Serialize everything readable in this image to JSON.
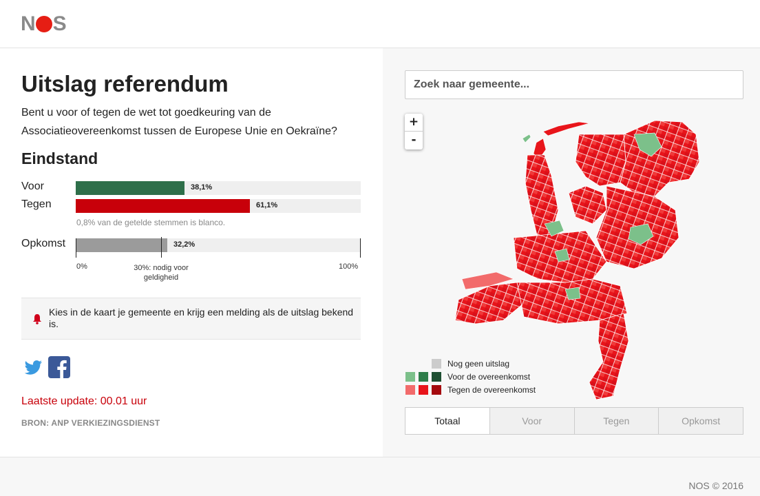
{
  "header": {
    "logo_text": "NOS"
  },
  "content": {
    "title": "Uitslag referendum",
    "question": "Bent u voor of tegen de wet tot goedkeuring van de Associatieovereenkomst tussen de Europese Unie en Oekraïne?",
    "subtitle": "Eindstand"
  },
  "results": {
    "voor": {
      "label": "Voor",
      "value": "38,1%",
      "fraction": 0.381,
      "color": "#2e6f4a"
    },
    "tegen": {
      "label": "Tegen",
      "value": "61,1%",
      "fraction": 0.611,
      "color": "#c8000a"
    },
    "blank_note": "0,8% van de getelde stemmen is blanco.",
    "opkomst": {
      "label": "Opkomst",
      "value": "32,2%",
      "fraction": 0.322,
      "color": "#9b9b9b"
    },
    "axis_min": "0%",
    "axis_max": "100%",
    "threshold_label": "30%: nodig voor geldigheid",
    "threshold_fraction": 0.3
  },
  "notice": {
    "text": "Kies in de kaart je gemeente en krijg een melding als de uitslag bekend is.",
    "icon": "bell-icon"
  },
  "social": {
    "icons": [
      "twitter-icon",
      "facebook-icon"
    ]
  },
  "update": {
    "text": "Laatste update: 00.01 uur"
  },
  "source": {
    "text": "BRON: ANP VERKIEZINGSDIENST"
  },
  "search": {
    "placeholder": "Zoek naar gemeente..."
  },
  "zoom": {
    "in_label": "+",
    "out_label": "-"
  },
  "legend": {
    "items": [
      {
        "label": "Nog geen uitslag",
        "colors": [
          "#cccccc"
        ]
      },
      {
        "label": "Voor de overeenkomst",
        "colors": [
          "#7cc08a",
          "#2e7d4a",
          "#1e4f32"
        ]
      },
      {
        "label": "Tegen de overeenkomst",
        "colors": [
          "#f26b6b",
          "#e8151b",
          "#a50a0e"
        ]
      }
    ]
  },
  "tabs": [
    "Totaal",
    "Voor",
    "Tegen",
    "Opkomst"
  ],
  "footer": {
    "copyright": "NOS © 2016"
  }
}
